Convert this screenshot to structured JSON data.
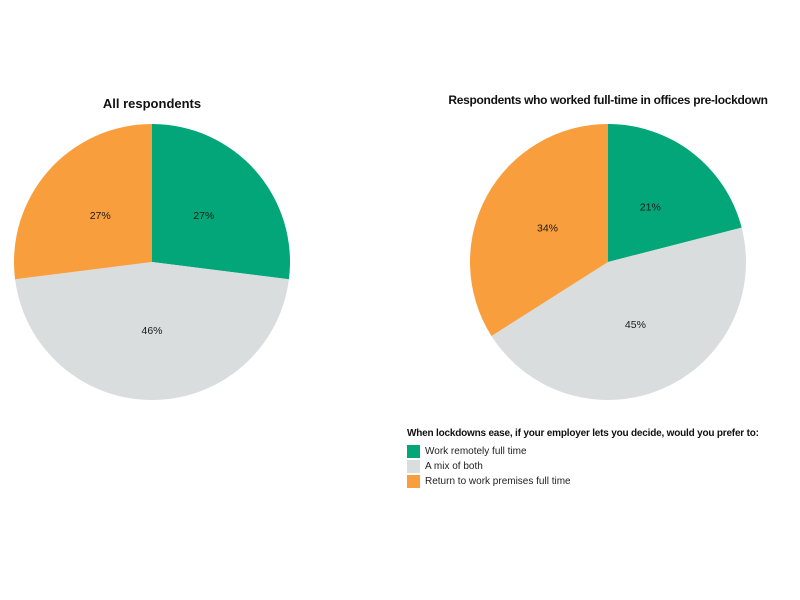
{
  "page": {
    "background": "#ffffff"
  },
  "colors": {
    "green": "#03A678",
    "gray": "#D9DDDE",
    "orange": "#F99E3C",
    "label_text": "#1a1a1a"
  },
  "chart_data": [
    {
      "type": "pie",
      "title": "All respondents",
      "categories": [
        "Work remotely full time",
        "A mix of both",
        "Return to work premises full time"
      ],
      "values": [
        27,
        46,
        27
      ],
      "labels": [
        "27%",
        "46%",
        "27%"
      ],
      "slice_colors": [
        "#03A678",
        "#D9DDDE",
        "#F99E3C"
      ],
      "start_angle_deg": 0,
      "direction": "clockwise",
      "label_distance": 0.5
    },
    {
      "type": "pie",
      "title": "Respondents who worked full-time in offices pre-lockdown",
      "categories": [
        "Work remotely full time",
        "A mix of both",
        "Return to work premises full time"
      ],
      "values": [
        21,
        45,
        34
      ],
      "labels": [
        "21%",
        "45%",
        "34%"
      ],
      "slice_colors": [
        "#03A678",
        "#D9DDDE",
        "#F99E3C"
      ],
      "start_angle_deg": 0,
      "direction": "clockwise",
      "label_distance": 0.5
    }
  ],
  "legend": {
    "title": "When lockdowns ease, if your employer lets you decide, would you prefer to:",
    "items": [
      {
        "label": "Work remotely full time",
        "color": "#03A678"
      },
      {
        "label": "A mix of both",
        "color": "#D9DDDE"
      },
      {
        "label": "Return to work premises full time",
        "color": "#F99E3C"
      }
    ]
  }
}
